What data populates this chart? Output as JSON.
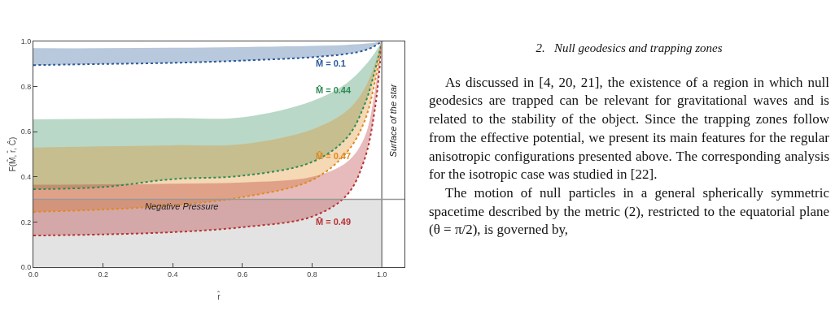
{
  "chart_data": {
    "type": "line",
    "xlabel": "r̂",
    "ylabel": "F(M̂, r̂, Ĉ)",
    "x": [
      0,
      0.2,
      0.4,
      0.6,
      0.8,
      0.9,
      0.95,
      0.98,
      1.0
    ],
    "series": [
      {
        "name": "M̂ = 0.1",
        "color": "#2a5a9a",
        "values": [
          0.895,
          0.9,
          0.905,
          0.915,
          0.93,
          0.945,
          0.96,
          0.98,
          1.0
        ],
        "lower": [
          0.895,
          0.9,
          0.905,
          0.915,
          0.93,
          0.945,
          0.96,
          0.98,
          1.0
        ],
        "upper": [
          0.97,
          0.97,
          0.972,
          0.975,
          0.98,
          0.985,
          0.99,
          0.995,
          1.0
        ]
      },
      {
        "name": "M̂ = 0.44",
        "color": "#2e8b57",
        "values": [
          0.345,
          0.355,
          0.39,
          0.405,
          0.466,
          0.574,
          0.718,
          0.87,
          1.0
        ],
        "lower": [
          0.345,
          0.355,
          0.39,
          0.405,
          0.466,
          0.574,
          0.718,
          0.87,
          1.0
        ],
        "upper": [
          0.655,
          0.657,
          0.66,
          0.664,
          0.736,
          0.816,
          0.89,
          0.95,
          1.0
        ]
      },
      {
        "name": "M̂ = 0.47",
        "color": "#e08a1e",
        "values": [
          0.245,
          0.255,
          0.274,
          0.31,
          0.386,
          0.51,
          0.645,
          0.82,
          1.0
        ],
        "lower": [
          0.245,
          0.255,
          0.274,
          0.31,
          0.386,
          0.51,
          0.645,
          0.82,
          1.0
        ],
        "upper": [
          0.53,
          0.535,
          0.54,
          0.545,
          0.61,
          0.693,
          0.79,
          0.9,
          1.0
        ]
      },
      {
        "name": "M̂ = 0.49",
        "color": "#b83232",
        "values": [
          0.14,
          0.145,
          0.155,
          0.177,
          0.224,
          0.32,
          0.476,
          0.7,
          1.0
        ],
        "lower": [
          0.14,
          0.145,
          0.155,
          0.177,
          0.224,
          0.32,
          0.476,
          0.7,
          1.0
        ],
        "upper": [
          0.365,
          0.367,
          0.37,
          0.375,
          0.4,
          0.466,
          0.574,
          0.78,
          1.0
        ]
      }
    ],
    "line_style": "dotted",
    "marker": "none",
    "grid": false,
    "legend": false,
    "xlim": [
      0,
      1.065
    ],
    "ylim": [
      0,
      1.0
    ],
    "xticks": [
      {
        "value": 0,
        "label": "0.0"
      },
      {
        "value": 0.2,
        "label": "0.2"
      },
      {
        "value": 0.4,
        "label": "0.4"
      },
      {
        "value": 0.6,
        "label": "0.6"
      },
      {
        "value": 0.8,
        "label": "0.8"
      },
      {
        "value": 1,
        "label": "1.0"
      }
    ],
    "yticks": [
      {
        "value": 0,
        "label": "0.0"
      },
      {
        "value": 0.2,
        "label": "0.2"
      },
      {
        "value": 0.4,
        "label": "0.4"
      },
      {
        "value": 0.6,
        "label": "0.6"
      },
      {
        "value": 0.8,
        "label": "0.8"
      },
      {
        "value": 1,
        "label": "1.0"
      }
    ],
    "ref_lines": [
      {
        "axis": "x",
        "value": 1.0,
        "label": "Surface of the star",
        "color": "#999999"
      },
      {
        "axis": "y",
        "value": 0.3,
        "color": "#999999"
      }
    ],
    "bands": [
      {
        "axis": "y",
        "from": 0,
        "to": 0.3,
        "label": "Negative Pressure",
        "color": "#e3e3e3"
      }
    ],
    "annotations": [
      "2.   Null geodesics and trapping zones",
      "As discussed in [4, 20, 21], the existence of a region in which null geodesics are trapped can be relevant for gravitational waves and is related to the stability of the object. Since the trapping zones follow from the effective potential, we present its main features for the regular anisotropic configurations presented above. The corresponding analysis for the isotropic case was studied in [22].",
      "The motion of null particles in a general spherically symmetric spacetime described by the metric (2), restricted to the equatorial plane (θ = π/2), is governed by,"
    ]
  }
}
